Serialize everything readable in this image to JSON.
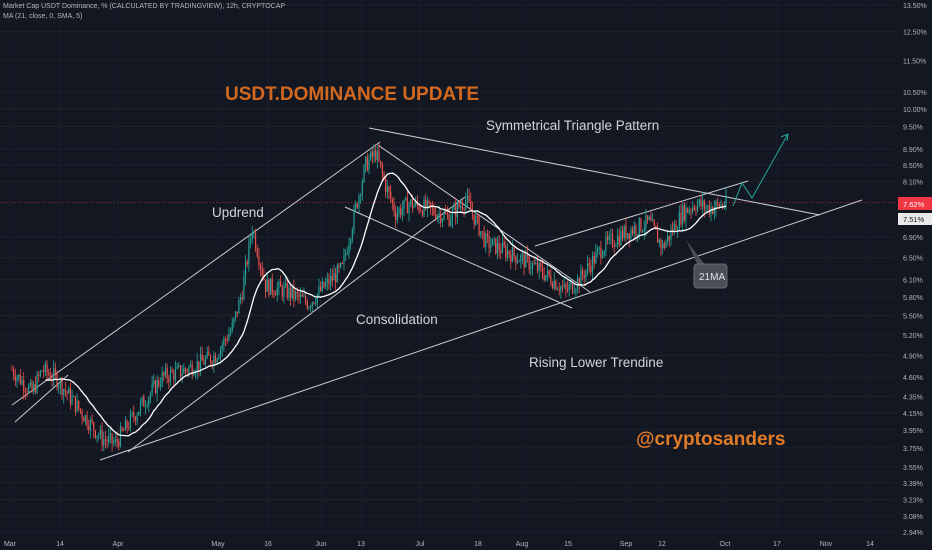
{
  "header": {
    "title": "Market Cap USDT Dominance, % (CALCULATED BY TRADINGVIEW), 12h, CRYPTOCAP",
    "indicator": "MA (21, close, 0, SMA, 5)"
  },
  "annotations": {
    "headline": "USDT.DOMINANCE  UPDATE",
    "triangle": "Symmetrical Triangle Pattern",
    "uptrend": "Updrend",
    "consolidation": "Consolidation",
    "rising": "Rising Lower Trendine",
    "handle": "@cryptosanders",
    "ma_tag": "21MA"
  },
  "colors": {
    "background": "#131722",
    "up": "#26a69a",
    "down": "#ef5350",
    "ma": "#ffffff",
    "headline": "#d2691e",
    "handle": "#e07b28",
    "projection": "#26a69a",
    "price_label": "#f23645"
  },
  "chart_data": {
    "type": "candlestick",
    "title": "Market Cap USDT Dominance, % (CALCULATED BY TRADINGVIEW), 12h, CRYPTOCAP",
    "interval": "12h",
    "yscale": "log",
    "ylim": [
      2.94,
      13.5
    ],
    "y_ticks": [
      "13.50%",
      "12.50%",
      "11.50%",
      "10.50%",
      "10.00%",
      "9.50%",
      "8.90%",
      "8.50%",
      "8.10%",
      "7.62%",
      "7.51%",
      "6.90%",
      "6.50%",
      "6.10%",
      "5.80%",
      "5.50%",
      "5.20%",
      "4.90%",
      "4.60%",
      "4.35%",
      "4.15%",
      "3.95%",
      "3.75%",
      "3.55%",
      "3.39%",
      "3.23%",
      "3.08%",
      "2.94%"
    ],
    "x_ticks": [
      "Mar",
      "14",
      "Apr",
      "May",
      "16",
      "Jun",
      "13",
      "Jul",
      "18",
      "Aug",
      "15",
      "Sep",
      "12",
      "Oct",
      "17",
      "Nov",
      "14"
    ],
    "last_price": "7.62%",
    "ma_price": "7.51%",
    "ma": {
      "name": "MA",
      "period": 21,
      "source": "close",
      "type": "SMA"
    },
    "price_path": [
      [
        "Mar 1",
        4.7
      ],
      [
        "Mar 7",
        4.4
      ],
      [
        "Mar 10",
        4.7
      ],
      [
        "Mar 14",
        4.6
      ],
      [
        "Mar 21",
        4.2
      ],
      [
        "Mar 28",
        3.85
      ],
      [
        "Apr 1",
        3.8
      ],
      [
        "Apr 8",
        4.2
      ],
      [
        "Apr 15",
        4.6
      ],
      [
        "Apr 22",
        4.7
      ],
      [
        "May 1",
        4.9
      ],
      [
        "May 6",
        5.3
      ],
      [
        "May 9",
        5.9
      ],
      [
        "May 12",
        7.1
      ],
      [
        "May 16",
        6.0
      ],
      [
        "May 22",
        5.9
      ],
      [
        "May 29",
        5.7
      ],
      [
        "Jun 3",
        6.0
      ],
      [
        "Jun 8",
        6.3
      ],
      [
        "Jun 12",
        7.5
      ],
      [
        "Jun 15",
        8.5
      ],
      [
        "Jun 18",
        8.8
      ],
      [
        "Jun 21",
        8.0
      ],
      [
        "Jun 24",
        7.4
      ],
      [
        "Jun 28",
        7.6
      ],
      [
        "Jul 3",
        7.5
      ],
      [
        "Jul 10",
        7.3
      ],
      [
        "Jul 15",
        7.7
      ],
      [
        "Jul 21",
        6.8
      ],
      [
        "Jul 28",
        6.6
      ],
      [
        "Aug 3",
        6.4
      ],
      [
        "Aug 10",
        6.1
      ],
      [
        "Aug 14",
        5.9
      ],
      [
        "Aug 18",
        6.1
      ],
      [
        "Aug 25",
        6.7
      ],
      [
        "Sep 1",
        7.0
      ],
      [
        "Sep 8",
        7.2
      ],
      [
        "Sep 12",
        6.7
      ],
      [
        "Sep 18",
        7.4
      ],
      [
        "Sep 22",
        7.6
      ],
      [
        "Sep 26",
        7.5
      ],
      [
        "Oct 1",
        7.6
      ]
    ],
    "trendlines": [
      {
        "name": "Symmetrical Triangle Pattern",
        "from": [
          "Jun 17",
          9.5
        ],
        "to": [
          "Nov 1",
          7.3
        ]
      },
      {
        "name": "Rising Lower Trendine",
        "from": [
          "Apr 1",
          3.72
        ],
        "to": [
          "Nov 7",
          7.9
        ]
      },
      {
        "name": "Updrend",
        "from": [
          "Mar 1",
          4.05
        ],
        "to": [
          "Jun 18",
          9.1
        ]
      },
      {
        "name": "Consolidation",
        "from": [
          "Jun 7",
          7.8
        ],
        "to": [
          "Aug 16",
          5.6
        ]
      }
    ],
    "projection": [
      [
        "Oct 2",
        7.7
      ],
      [
        "Oct 4",
        8.1
      ],
      [
        "Oct 7",
        7.7
      ],
      [
        "Oct 17",
        9.4
      ]
    ]
  }
}
